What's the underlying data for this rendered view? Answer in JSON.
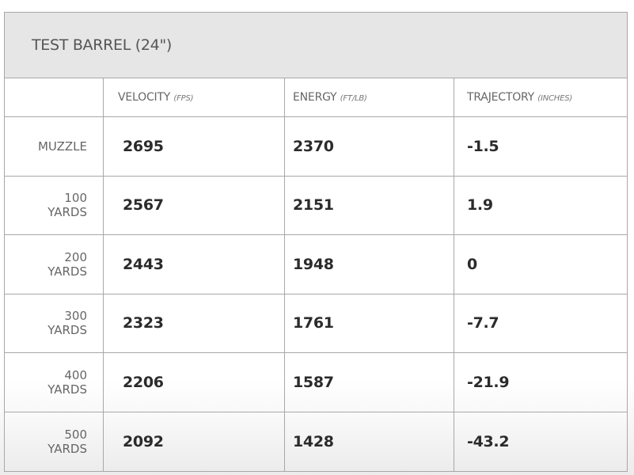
{
  "title": "TEST BARREL (24\")",
  "columns": [
    {
      "label": "VELOCITY",
      "unit": "(FPS)"
    },
    {
      "label": "ENERGY",
      "unit": "(FT/LB)"
    },
    {
      "label": "TRAJECTORY",
      "unit": "(INCHES)"
    }
  ],
  "rows": [
    {
      "range": "MUZZLE",
      "range_unit": "",
      "velocity": "2695",
      "energy": "2370",
      "trajectory": "-1.5"
    },
    {
      "range": "100",
      "range_unit": "YARDS",
      "velocity": "2567",
      "energy": "2151",
      "trajectory": "1.9"
    },
    {
      "range": "200",
      "range_unit": "YARDS",
      "velocity": "2443",
      "energy": "1948",
      "trajectory": "0"
    },
    {
      "range": "300",
      "range_unit": "YARDS",
      "velocity": "2323",
      "energy": "1761",
      "trajectory": "-7.7"
    },
    {
      "range": "400",
      "range_unit": "YARDS",
      "velocity": "2206",
      "energy": "1587",
      "trajectory": "-21.9"
    },
    {
      "range": "500",
      "range_unit": "YARDS",
      "velocity": "2092",
      "energy": "1428",
      "trajectory": "-43.2"
    }
  ]
}
